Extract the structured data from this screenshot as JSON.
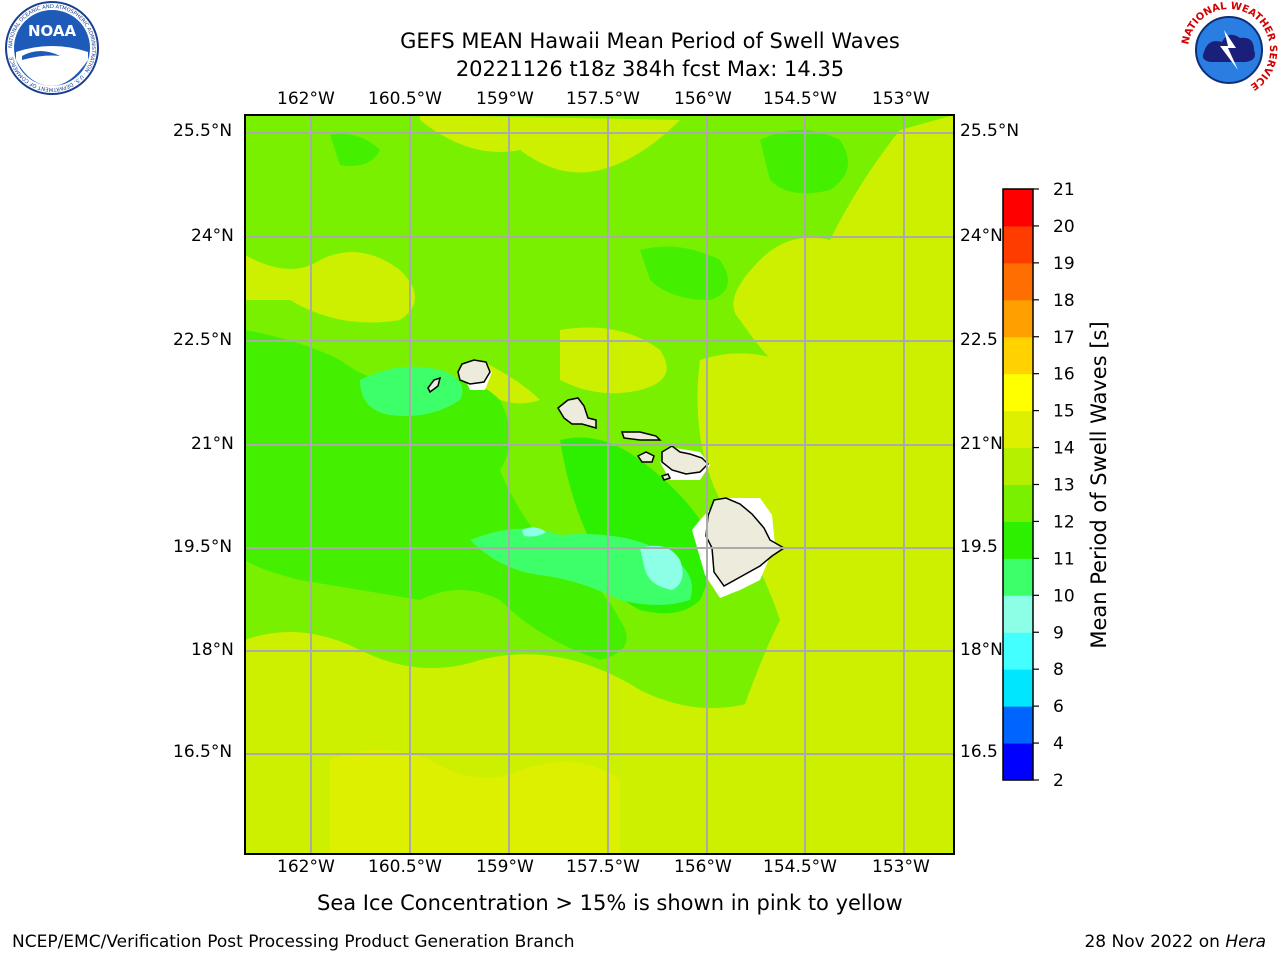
{
  "header": {
    "title_line1": "GEFS MEAN Hawaii Mean Period of Swell Waves",
    "title_line2": "20221126 t18z 384h fcst   Max: 14.35"
  },
  "logos": {
    "left": "noaa-logo",
    "left_text": "NOAA",
    "left_ring_text": "NATIONAL OCEANIC AND ATMOSPHERIC ADMINISTRATION · U.S. DEPARTMENT OF COMMERCE",
    "right": "nws-logo",
    "right_ring_text": "NATIONAL WEATHER SERVICE"
  },
  "map": {
    "lon_ticks": [
      "162°W",
      "160.5°W",
      "159°W",
      "157.5°W",
      "156°W",
      "154.5°W",
      "153°W"
    ],
    "lat_ticks_left": [
      "25.5°N",
      "24°N",
      "22.5°N",
      "21°N",
      "19.5°N",
      "18°N",
      "16.5°N"
    ],
    "lat_ticks_right": [
      "25.5°N",
      "24°N",
      "22.5",
      "21°N",
      "19.5",
      "18°N",
      "16.5"
    ],
    "note": "Sea Ice Concentration > 15% is shown in pink to yellow"
  },
  "colorbar": {
    "label": "Mean Period of Swell Waves [s]",
    "levels": [
      "2",
      "4",
      "6",
      "8",
      "9",
      "10",
      "11",
      "12",
      "13",
      "14",
      "15",
      "16",
      "17",
      "18",
      "19",
      "20",
      "21"
    ],
    "colors": [
      "#0000ff",
      "#0064ff",
      "#00e6ff",
      "#44ffff",
      "#8cffe6",
      "#3cff6a",
      "#2cf000",
      "#78f000",
      "#b4f000",
      "#dcf000",
      "#ffff00",
      "#ffd200",
      "#ffa000",
      "#ff6e00",
      "#ff3c00",
      "#ff0000"
    ]
  },
  "colors": {
    "land": "#ecebdc",
    "gridline": "#aaaaaa",
    "dominant_field": "#78f000",
    "yellow_field": "#ccf000"
  },
  "footer": {
    "left": "NCEP/EMC/Verification Post Processing Product Generation Branch",
    "right_date": "28 Nov 2022 on",
    "right_machine": "Hera"
  }
}
